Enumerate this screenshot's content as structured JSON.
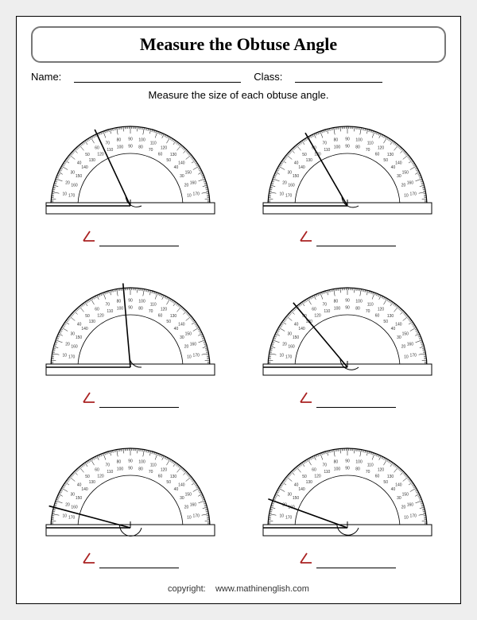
{
  "title": "Measure the Obtuse Angle",
  "name_label": "Name:",
  "class_label": "Class:",
  "instruction": "Measure the size of each obtuse angle.",
  "footer_prefix": "copyright:",
  "footer_site": "www.mathinenglish.com",
  "protractor": {
    "outer_radius": 100,
    "inner_radius": 66,
    "arc_stroke": "#000000",
    "tick_stroke": "#000000",
    "number_color": "#333333",
    "number_fontsize": 5,
    "base_rect_stroke": "#000000",
    "base_rect_fill": "#ffffff",
    "angle_line_stroke": "#000000",
    "angle_line_width": 1.6,
    "angle_arc_stroke": "#000000",
    "angle_symbol_color": "#aa2222"
  },
  "cells": [
    {
      "angle_deg": 115
    },
    {
      "angle_deg": 120
    },
    {
      "angle_deg": 95
    },
    {
      "angle_deg": 130
    },
    {
      "angle_deg": 165
    },
    {
      "angle_deg": 160
    }
  ]
}
